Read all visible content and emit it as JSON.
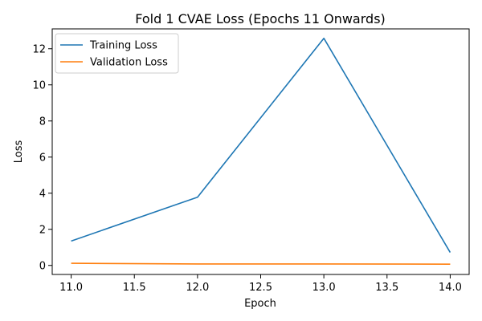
{
  "chart_data": {
    "type": "line",
    "title": "Fold 1 CVAE Loss (Epochs 11 Onwards)",
    "xlabel": "Epoch",
    "ylabel": "Loss",
    "x": [
      11,
      12,
      13,
      14
    ],
    "xlim": [
      10.85,
      14.15
    ],
    "ylim": [
      -0.5,
      13.1
    ],
    "xticks": [
      11.0,
      11.5,
      12.0,
      12.5,
      13.0,
      13.5,
      14.0
    ],
    "xtick_labels": [
      "11.0",
      "11.5",
      "12.0",
      "12.5",
      "13.0",
      "13.5",
      "14.0"
    ],
    "yticks": [
      0,
      2,
      4,
      6,
      8,
      10,
      12
    ],
    "ytick_labels": [
      "0",
      "2",
      "4",
      "6",
      "8",
      "10",
      "12"
    ],
    "grid": false,
    "legend_position": "top-left",
    "series": [
      {
        "name": "Training Loss",
        "color": "#1f77b4",
        "values": [
          1.35,
          3.78,
          12.58,
          0.72
        ]
      },
      {
        "name": "Validation Loss",
        "color": "#ff7f0e",
        "values": [
          0.12,
          0.08,
          0.08,
          0.07
        ]
      }
    ]
  }
}
